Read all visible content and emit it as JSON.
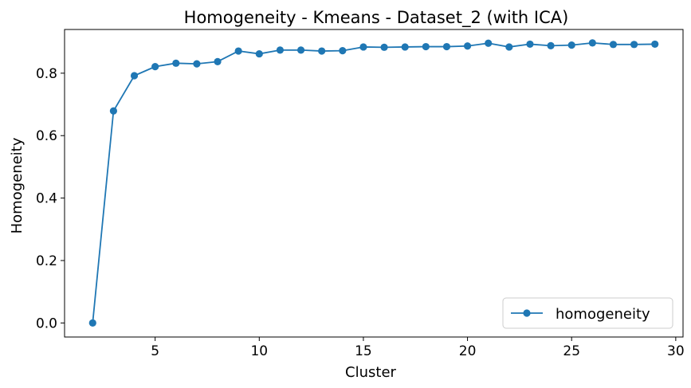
{
  "chart_data": {
    "type": "line",
    "title": "Homogeneity - Kmeans - Dataset_2 (with ICA)",
    "xlabel": "Cluster",
    "ylabel": "Homogeneity",
    "xlim": [
      0.65,
      30.35
    ],
    "ylim": [
      -0.045,
      0.94
    ],
    "xticks": [
      5,
      10,
      15,
      20,
      25,
      30
    ],
    "yticks": [
      0.0,
      0.2,
      0.4,
      0.6,
      0.8
    ],
    "ytick_format": 1,
    "grid": false,
    "legend_position": "lower-right",
    "series": [
      {
        "name": "homogeneity",
        "color": "#1f77b4",
        "marker": "circle",
        "x": [
          2,
          3,
          4,
          5,
          6,
          7,
          8,
          9,
          10,
          11,
          12,
          13,
          14,
          15,
          16,
          17,
          18,
          19,
          20,
          21,
          22,
          23,
          24,
          25,
          26,
          27,
          28,
          29
        ],
        "y": [
          0.0,
          0.679,
          0.792,
          0.821,
          0.832,
          0.83,
          0.837,
          0.871,
          0.862,
          0.874,
          0.874,
          0.871,
          0.872,
          0.884,
          0.883,
          0.884,
          0.885,
          0.885,
          0.887,
          0.896,
          0.884,
          0.893,
          0.888,
          0.89,
          0.897,
          0.892,
          0.892,
          0.893
        ]
      }
    ]
  }
}
